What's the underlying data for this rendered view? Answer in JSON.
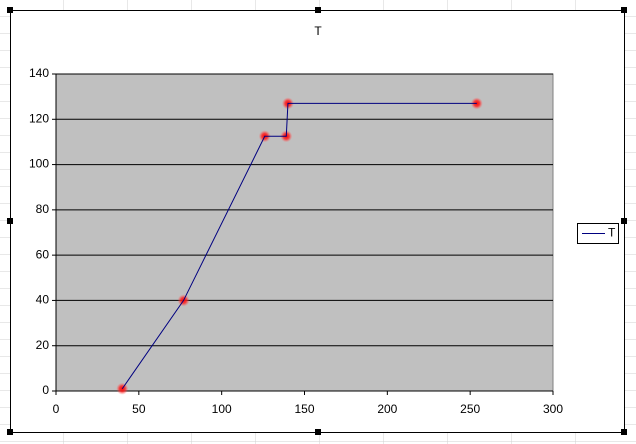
{
  "chart_data": {
    "type": "line",
    "title": "T",
    "x": [
      40,
      77,
      126,
      139,
      140,
      254
    ],
    "series": [
      {
        "name": "T",
        "color": "#000080",
        "marker_color": "#ff0000",
        "values": [
          1,
          40,
          112.5,
          112.5,
          127,
          127
        ]
      }
    ],
    "xlim": [
      0,
      300
    ],
    "xticks": [
      0,
      50,
      100,
      150,
      200,
      250,
      300
    ],
    "ylim": [
      0,
      140
    ],
    "yticks": [
      0,
      20,
      40,
      60,
      80,
      100,
      120,
      140
    ],
    "grid": true,
    "legend": "right"
  }
}
